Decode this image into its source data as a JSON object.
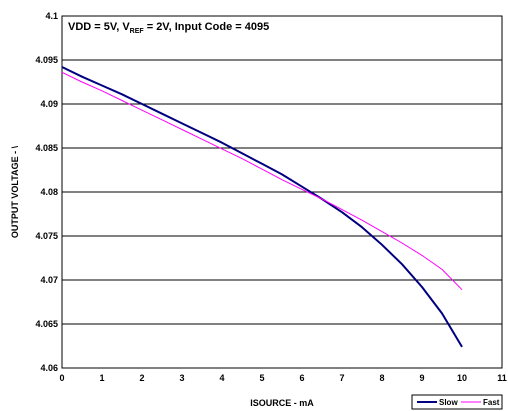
{
  "chart_data": {
    "type": "line",
    "title": "",
    "annotation": {
      "prefix": "VDD = 5V, V",
      "subscript": "REF",
      "suffix": " = 2V, Input Code = 4095"
    },
    "xlabel": "ISOURCE - mA",
    "ylabel": "OUTPUT VOLTAGE - \\",
    "xlim": [
      0,
      11
    ],
    "ylim": [
      4.06,
      4.1
    ],
    "x_ticks": [
      "0",
      "1",
      "2",
      "3",
      "4",
      "5",
      "6",
      "7",
      "8",
      "9",
      "10",
      "11"
    ],
    "y_ticks": [
      "4.06",
      "4.065",
      "4.07",
      "4.075",
      "4.08",
      "4.085",
      "4.09",
      "4.095",
      "4.1"
    ],
    "grid": "horizontal",
    "legend_position": "bottom-right",
    "series": [
      {
        "name": "Slow",
        "color": "#000080",
        "x": [
          0,
          0.5,
          1,
          1.5,
          2,
          2.5,
          3,
          3.5,
          4,
          4.5,
          5,
          5.5,
          6,
          6.5,
          7,
          7.5,
          8,
          8.5,
          9,
          9.5,
          10
        ],
        "y": [
          4.0942,
          4.0931,
          4.0921,
          4.0911,
          4.09,
          4.0889,
          4.0878,
          4.0867,
          4.0856,
          4.0844,
          4.0832,
          4.082,
          4.0806,
          4.0792,
          4.0777,
          4.076,
          4.074,
          4.0718,
          4.0692,
          4.0662,
          4.0624
        ]
      },
      {
        "name": "Fast",
        "color": "#ff00ff",
        "x": [
          0,
          0.5,
          1,
          1.5,
          2,
          2.5,
          3,
          3.5,
          4,
          4.5,
          5,
          5.5,
          6,
          6.5,
          7,
          7.5,
          8,
          8.5,
          9,
          9.5,
          10
        ],
        "y": [
          4.0936,
          4.0925,
          4.0915,
          4.0904,
          4.0893,
          4.0882,
          4.0871,
          4.086,
          4.0849,
          4.0838,
          4.0826,
          4.0814,
          4.0803,
          4.0792,
          4.078,
          4.0768,
          4.0755,
          4.0742,
          4.0728,
          4.0712,
          4.0689
        ]
      }
    ]
  }
}
